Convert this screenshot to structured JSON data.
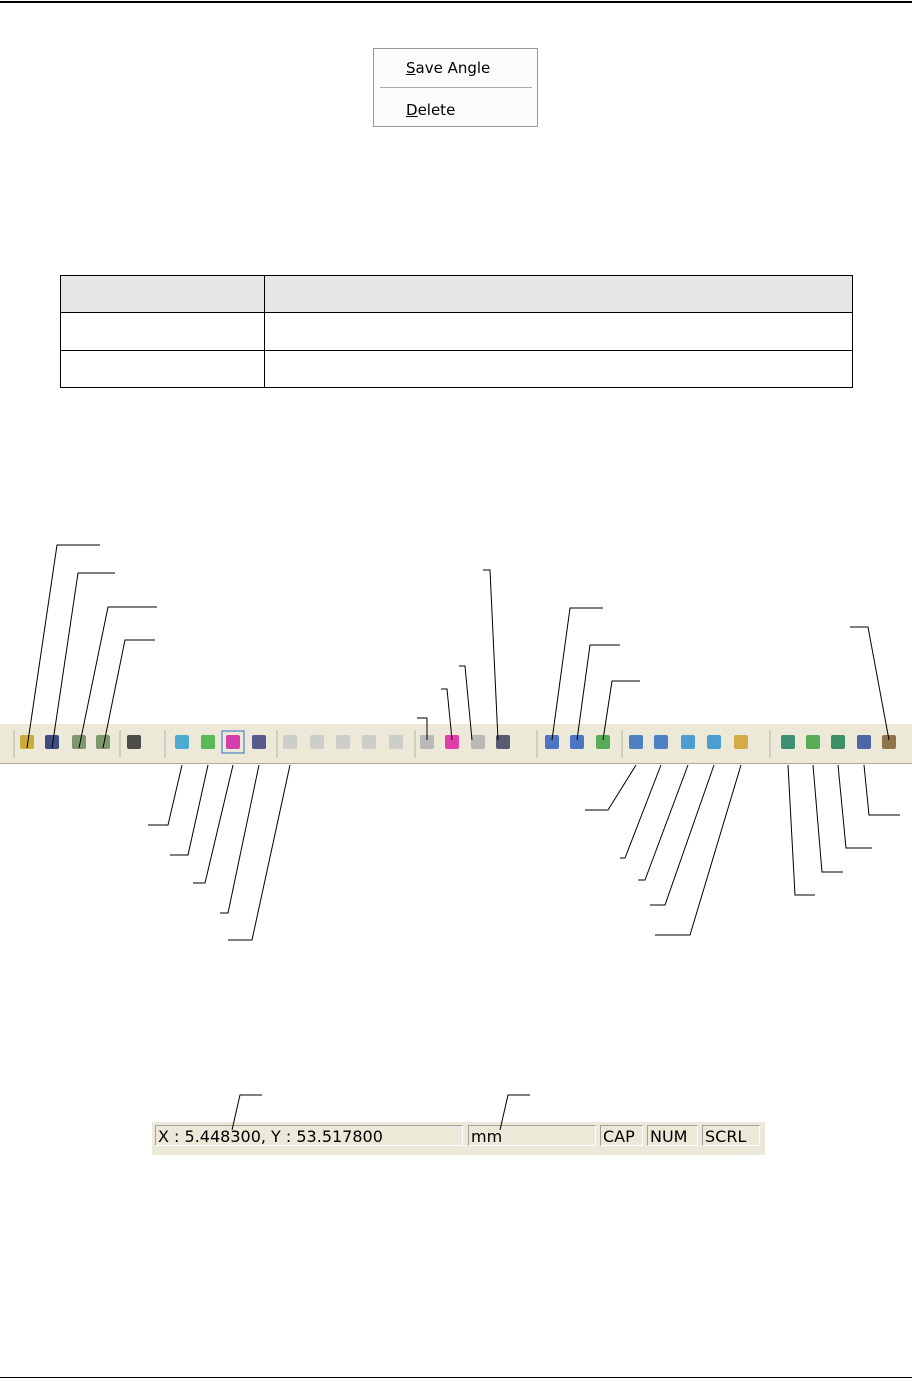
{
  "context_menu": {
    "items": [
      "Save Angle",
      "Delete"
    ]
  },
  "status_bar": {
    "coordinates": "X : 5.448300, Y : 53.517800",
    "unit": "mm",
    "indicators": [
      "CAP",
      "NUM",
      "SCRL"
    ]
  }
}
